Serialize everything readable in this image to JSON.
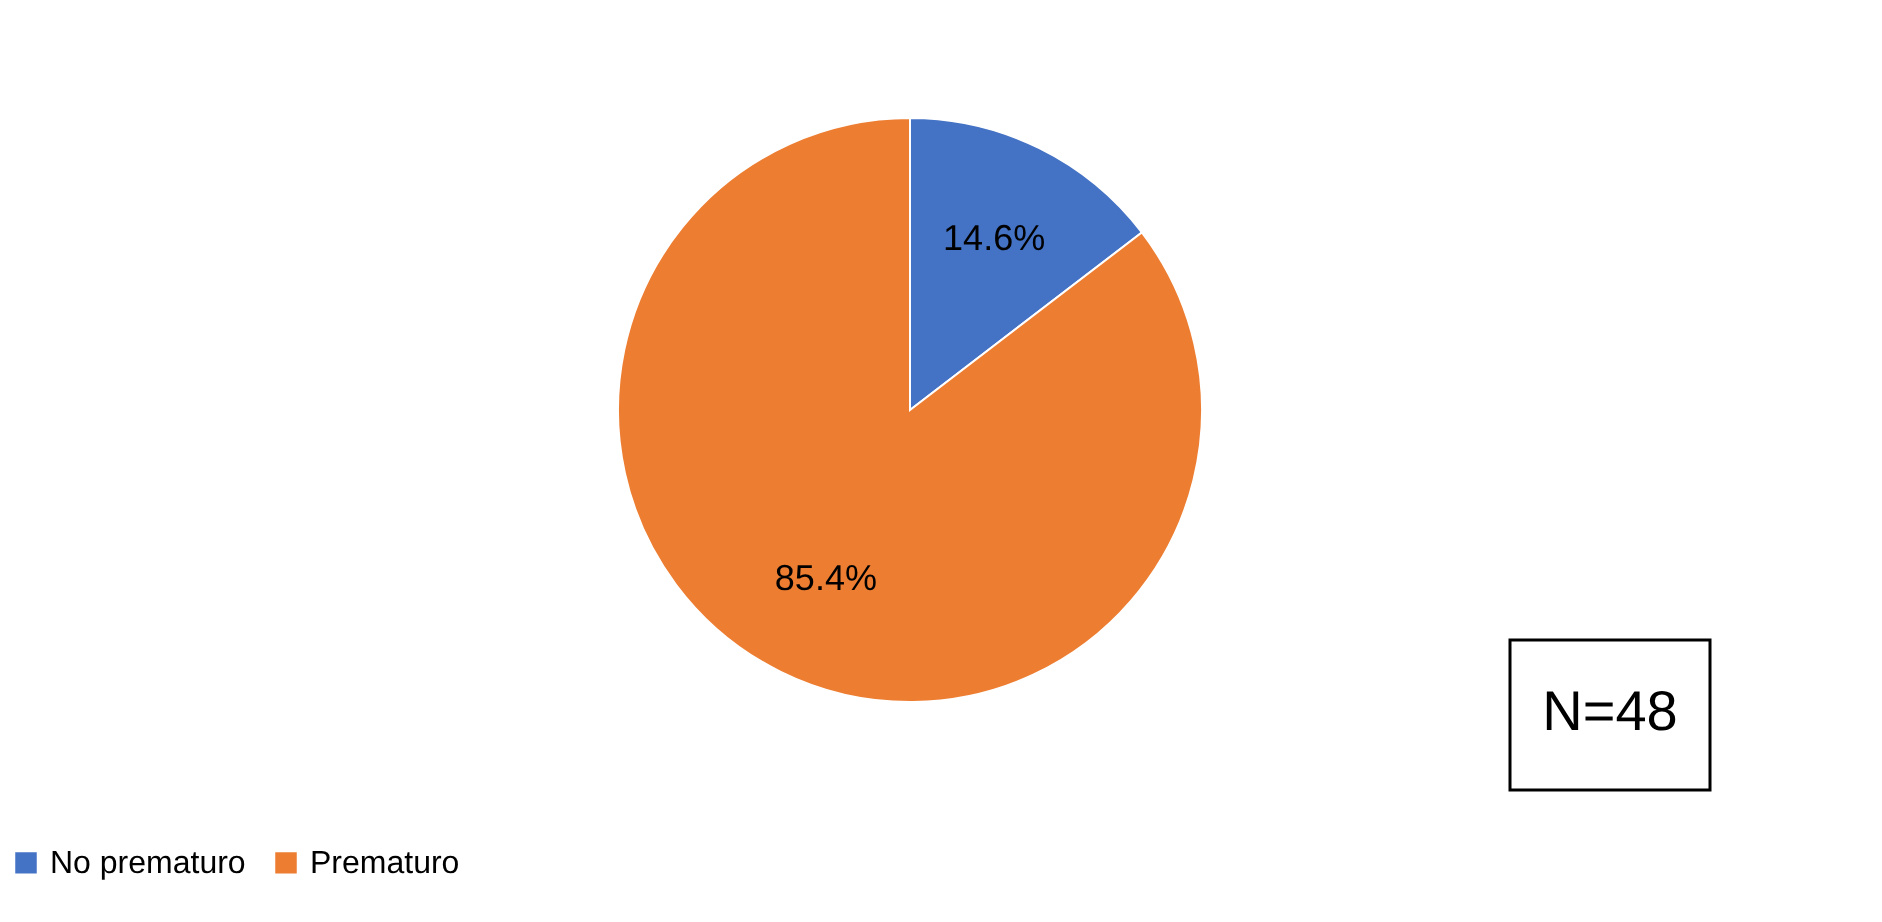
{
  "chart_data": {
    "type": "pie",
    "categories": [
      "No prematuro",
      "Prematuro"
    ],
    "values": [
      14.6,
      85.4
    ],
    "colors": [
      "#4472c4",
      "#ed7d31"
    ],
    "value_labels": [
      "14.6%",
      "85.4%"
    ],
    "legend": "bottom",
    "annotations": [
      "N=48"
    ]
  }
}
